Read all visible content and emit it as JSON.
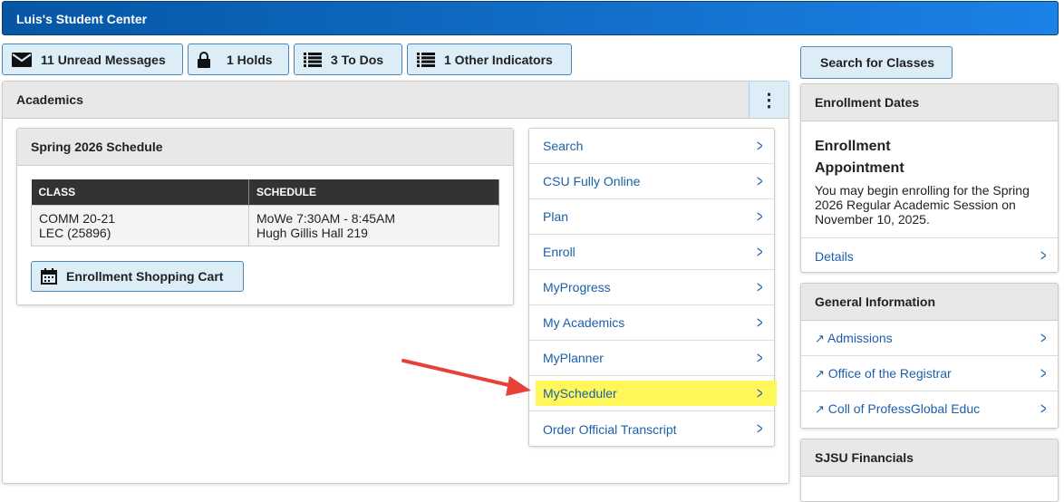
{
  "header": {
    "title": "Luis's Student Center"
  },
  "indicators": [
    {
      "icon": "envelope-icon",
      "label": "11 Unread Messages"
    },
    {
      "icon": "lock-icon",
      "label": "1 Holds"
    },
    {
      "icon": "list-icon",
      "label": "3 To Dos"
    },
    {
      "icon": "list-icon",
      "label": "1 Other Indicators"
    }
  ],
  "academics": {
    "title": "Academics",
    "schedule": {
      "title": "Spring 2026 Schedule",
      "columns": [
        "CLASS",
        "SCHEDULE"
      ],
      "rows": [
        {
          "class_line1": "COMM 20-21",
          "class_line2": "LEC (25896)",
          "sched_line1": "MoWe 7:30AM - 8:45AM",
          "sched_line2": "Hugh Gillis Hall 219"
        }
      ],
      "cart_label": "Enrollment Shopping Cart"
    },
    "nav": [
      "Search",
      "CSU Fully Online",
      "Plan",
      "Enroll",
      "MyProgress",
      "My Academics",
      "MyPlanner",
      "MyScheduler",
      "Order Official Transcript"
    ],
    "highlighted": "MyScheduler",
    "highlight_color": "#fff75a",
    "arrow_color": "#e8413a"
  },
  "right": {
    "search_label": "Search for Classes",
    "enrollment": {
      "title": "Enrollment Dates",
      "heading1": "Enrollment",
      "heading2": "Appointment",
      "text": "You may begin enrolling for the Spring 2026 Regular Academic Session on November 10, 2025.",
      "details": "Details"
    },
    "general": {
      "title": "General Information",
      "links": [
        "Admissions",
        "Office of the Registrar",
        "Coll of ProfessGlobal Educ"
      ]
    },
    "financials": {
      "title": "SJSU Financials"
    }
  }
}
